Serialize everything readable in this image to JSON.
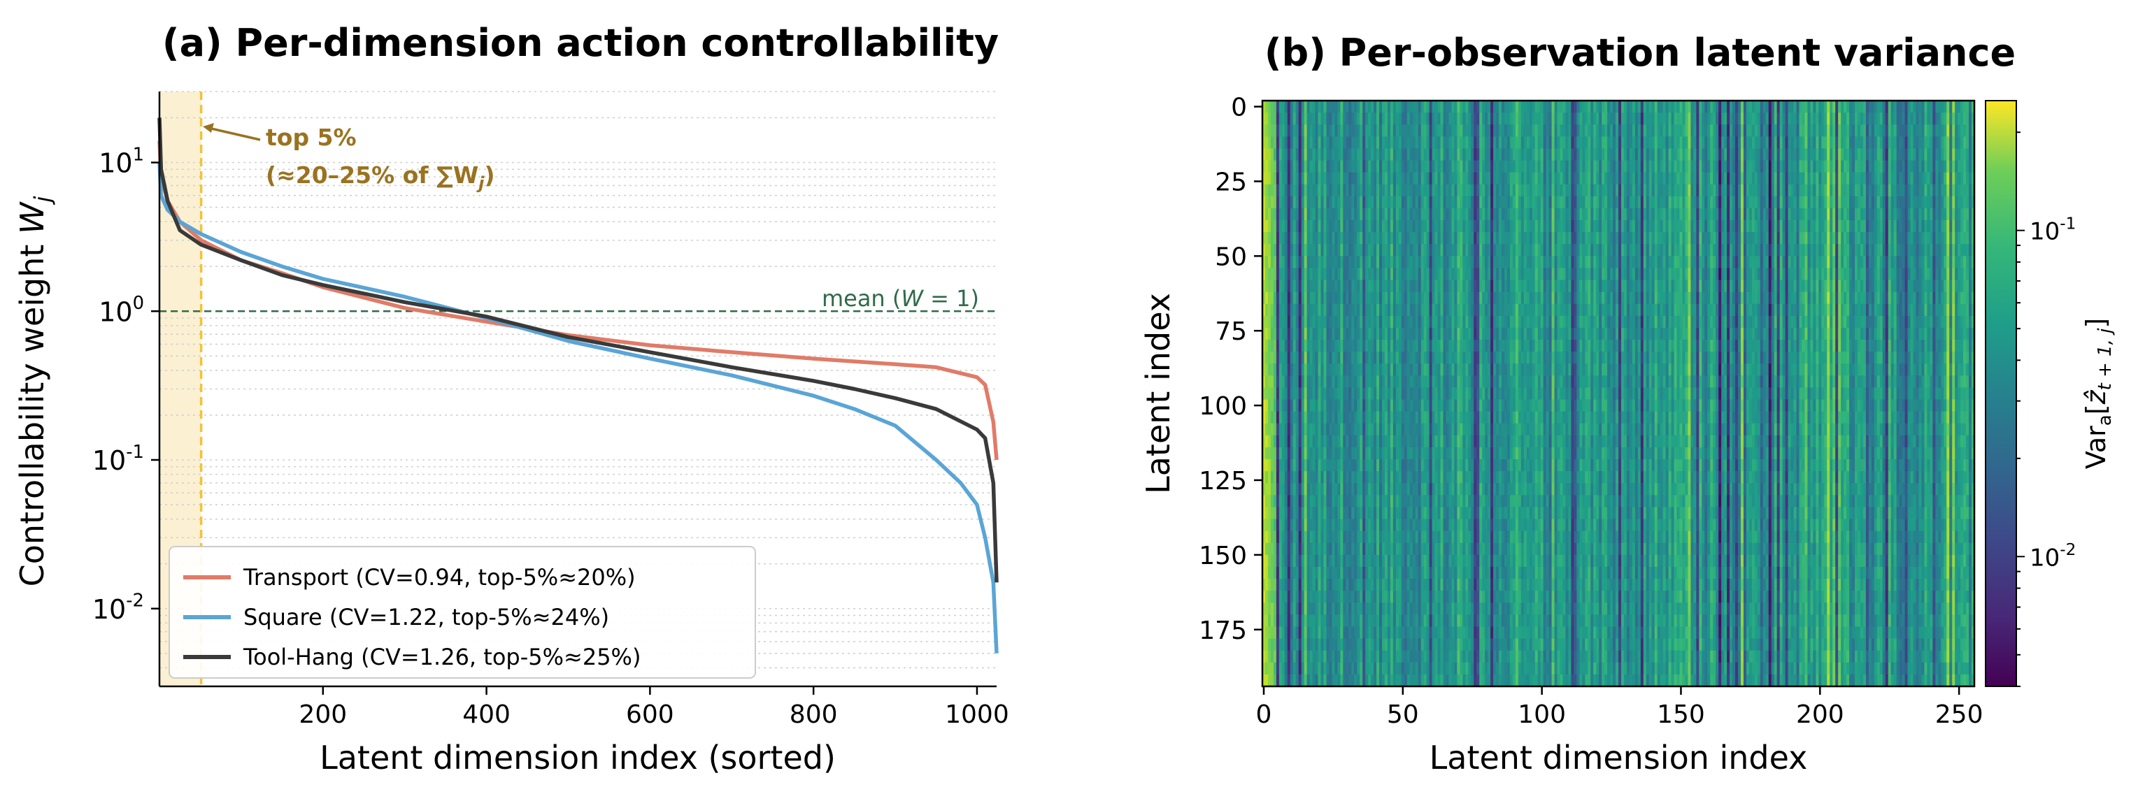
{
  "chart_data": [
    {
      "type": "line",
      "title": "(a) Per-dimension action controllability",
      "xlabel": "Latent dimension index (sorted)",
      "ylabel": "Controllability weight W_j",
      "yscale": "log",
      "xlim": [
        0,
        1024
      ],
      "ylim": [
        0.003,
        30
      ],
      "xticks": [
        "200",
        "400",
        "600",
        "800",
        "1000"
      ],
      "yticks": [
        "10^{-2}",
        "10^{-1}",
        "10^{0}",
        "10^{1}"
      ],
      "grid": "horizontal dotted minor",
      "legend_position": "bottom-left",
      "reference_line": {
        "y": 1,
        "label": "mean (W = 1)",
        "color": "#2f6b4a"
      },
      "highlight_region": {
        "x": [
          0,
          51
        ],
        "color": "#fbf0d2"
      },
      "highlight_line_color": "#f2c23a",
      "annotation": {
        "line1": "top 5%",
        "line2": "(≈20–25% of ∑W",
        "line2_sub": "j",
        "line2_end": ")",
        "color": "#9a7320"
      },
      "series": [
        {
          "name": "Transport  (CV=0.94, top-5%≈20%)",
          "color": "#e07b67",
          "x": [
            0,
            2,
            10,
            25,
            51,
            100,
            150,
            200,
            300,
            400,
            500,
            600,
            700,
            800,
            900,
            950,
            1000,
            1010,
            1020,
            1024
          ],
          "values": [
            14,
            8,
            5.5,
            4.0,
            3.0,
            2.2,
            1.8,
            1.45,
            1.05,
            0.85,
            0.69,
            0.59,
            0.53,
            0.48,
            0.44,
            0.42,
            0.36,
            0.32,
            0.18,
            0.1
          ]
        },
        {
          "name": "Square  (CV=1.22, top-5%≈24%)",
          "color": "#5aa5d6",
          "x": [
            0,
            2,
            10,
            25,
            51,
            100,
            150,
            200,
            300,
            400,
            500,
            600,
            700,
            800,
            850,
            900,
            950,
            980,
            1000,
            1010,
            1020,
            1024
          ],
          "values": [
            10,
            6,
            4.8,
            4.0,
            3.3,
            2.5,
            2.0,
            1.65,
            1.25,
            0.9,
            0.63,
            0.48,
            0.37,
            0.27,
            0.22,
            0.17,
            0.1,
            0.07,
            0.05,
            0.03,
            0.015,
            0.005
          ]
        },
        {
          "name": "Tool-Hang  (CV=1.26, top-5%≈25%)",
          "color": "#3a3a3a",
          "x": [
            0,
            2,
            10,
            25,
            51,
            100,
            150,
            200,
            300,
            400,
            500,
            600,
            700,
            800,
            850,
            900,
            950,
            1000,
            1010,
            1020,
            1024
          ],
          "values": [
            20,
            9,
            5.5,
            3.5,
            2.8,
            2.2,
            1.75,
            1.5,
            1.15,
            0.92,
            0.67,
            0.53,
            0.42,
            0.34,
            0.3,
            0.26,
            0.22,
            0.16,
            0.14,
            0.07,
            0.015
          ]
        }
      ]
    },
    {
      "type": "heatmap",
      "title": "(b) Per-observation latent variance",
      "xlabel": "Latent dimension index",
      "ylabel": "Latent index",
      "x_range": [
        0,
        256
      ],
      "y_range": [
        0,
        196
      ],
      "xticks": [
        "0",
        "50",
        "100",
        "150",
        "200",
        "250"
      ],
      "yticks": [
        "0",
        "25",
        "50",
        "75",
        "100",
        "125",
        "150",
        "175"
      ],
      "colormap": "viridis",
      "colorscale": "log",
      "color_range": [
        0.004,
        0.25
      ],
      "colorbar_label": "Var_a[ẑ_{t+1,j}]",
      "colorbar_ticks": [
        "10^{-1}",
        "10^{-2}"
      ]
    }
  ]
}
